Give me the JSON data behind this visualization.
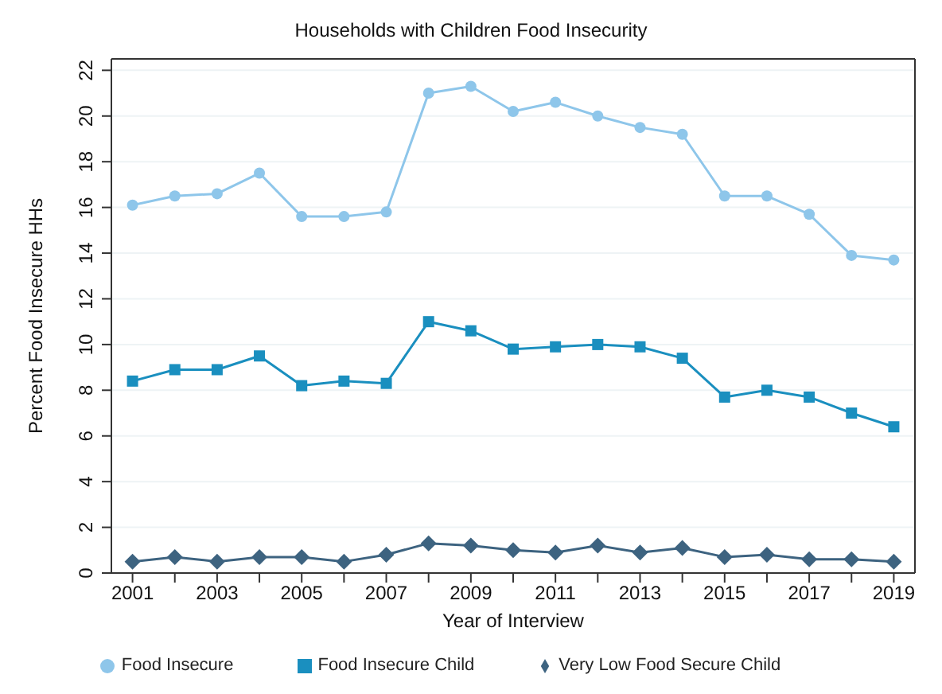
{
  "chart_data": {
    "type": "line",
    "title": "Households with Children Food Insecurity",
    "xlabel": "Year of Interview",
    "ylabel": "Percent Food Insecure HHs",
    "x": [
      2001,
      2002,
      2003,
      2004,
      2005,
      2006,
      2007,
      2008,
      2009,
      2010,
      2011,
      2012,
      2013,
      2014,
      2015,
      2016,
      2017,
      2018,
      2019
    ],
    "series": [
      {
        "name": "Food Insecure",
        "color": "#8ec6ea",
        "marker": "circle",
        "values": [
          16.1,
          16.5,
          16.6,
          17.5,
          15.6,
          15.6,
          15.8,
          21.0,
          21.3,
          20.2,
          20.6,
          20.0,
          19.5,
          19.2,
          16.5,
          16.5,
          15.7,
          13.9,
          13.7
        ]
      },
      {
        "name": "Food Insecure Child",
        "color": "#1a8fbf",
        "marker": "square",
        "values": [
          8.4,
          8.9,
          8.9,
          9.5,
          8.2,
          8.4,
          8.3,
          11.0,
          10.6,
          9.8,
          9.9,
          10.0,
          9.9,
          9.4,
          7.7,
          8.0,
          7.7,
          7.0,
          6.4
        ]
      },
      {
        "name": "Very Low Food Secure Child",
        "color": "#3d6380",
        "marker": "diamond",
        "values": [
          0.5,
          0.7,
          0.5,
          0.7,
          0.7,
          0.5,
          0.8,
          1.3,
          1.2,
          1.0,
          0.9,
          1.2,
          0.9,
          1.1,
          0.7,
          0.8,
          0.6,
          0.6,
          0.5
        ]
      }
    ],
    "xlim": [
      2000.5,
      2019.5
    ],
    "xticks": [
      2001,
      {
        "value": 2002,
        "label": null
      },
      2003,
      {
        "value": 2004,
        "label": null
      },
      2005,
      {
        "value": 2006,
        "label": null
      },
      2007,
      {
        "value": 2008,
        "label": null
      },
      2009,
      {
        "value": 2010,
        "label": null
      },
      2011,
      {
        "value": 2012,
        "label": null
      },
      2013,
      {
        "value": 2014,
        "label": null
      },
      2015,
      {
        "value": 2016,
        "label": null
      },
      2017,
      {
        "value": 2018,
        "label": null
      },
      2019
    ],
    "ylim": [
      0,
      22.5
    ],
    "yticks": [
      0,
      2,
      4,
      6,
      8,
      10,
      12,
      14,
      16,
      18,
      20,
      22
    ],
    "grid": "y",
    "legend": "bottom",
    "line_style": "solid"
  }
}
